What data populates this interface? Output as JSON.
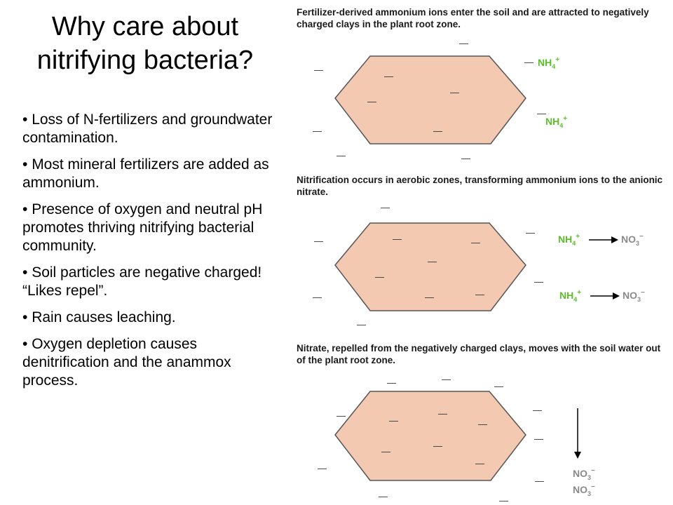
{
  "title_line1": "Why care about",
  "title_line2": "nitrifying bacteria?",
  "bullets": [
    "Loss of N-fertilizers and groundwater contamination.",
    "Most mineral fertilizers are added as ammonium.",
    "Presence of oxygen and neutral pH promotes thriving nitrifying bacterial community.",
    "Soil particles are negative charged!  “Likes repel”.",
    "Rain causes leaching.",
    "Oxygen depletion causes denitrification and the anammox process."
  ],
  "panels": [
    {
      "caption": "Fertilizer-derived ammonium ions enter the soil and are attracted to negatively charged clays in the plant root zone.",
      "ammonium": "NH",
      "sub4": "4",
      "plus": "+"
    },
    {
      "caption": "Nitrification occurs in aerobic zones, transforming ammonium ions to the anionic nitrate.",
      "ammonium": "NH",
      "nitrate": "NO",
      "sub4": "4",
      "sub3": "3",
      "plus": "+",
      "minus": "−"
    },
    {
      "caption": "Nitrate, repelled from the negatively charged clays, moves with the soil water out of the plant root zone.",
      "nitrate": "NO",
      "sub3": "3",
      "minus": "−"
    }
  ],
  "minus_sign": "—",
  "colors": {
    "clay_fill": "#f4c9b1",
    "clay_stroke": "#555555",
    "ammonium_green": "#5abf2a",
    "nitrate_gray": "#8a8a8a",
    "text": "#000000"
  }
}
